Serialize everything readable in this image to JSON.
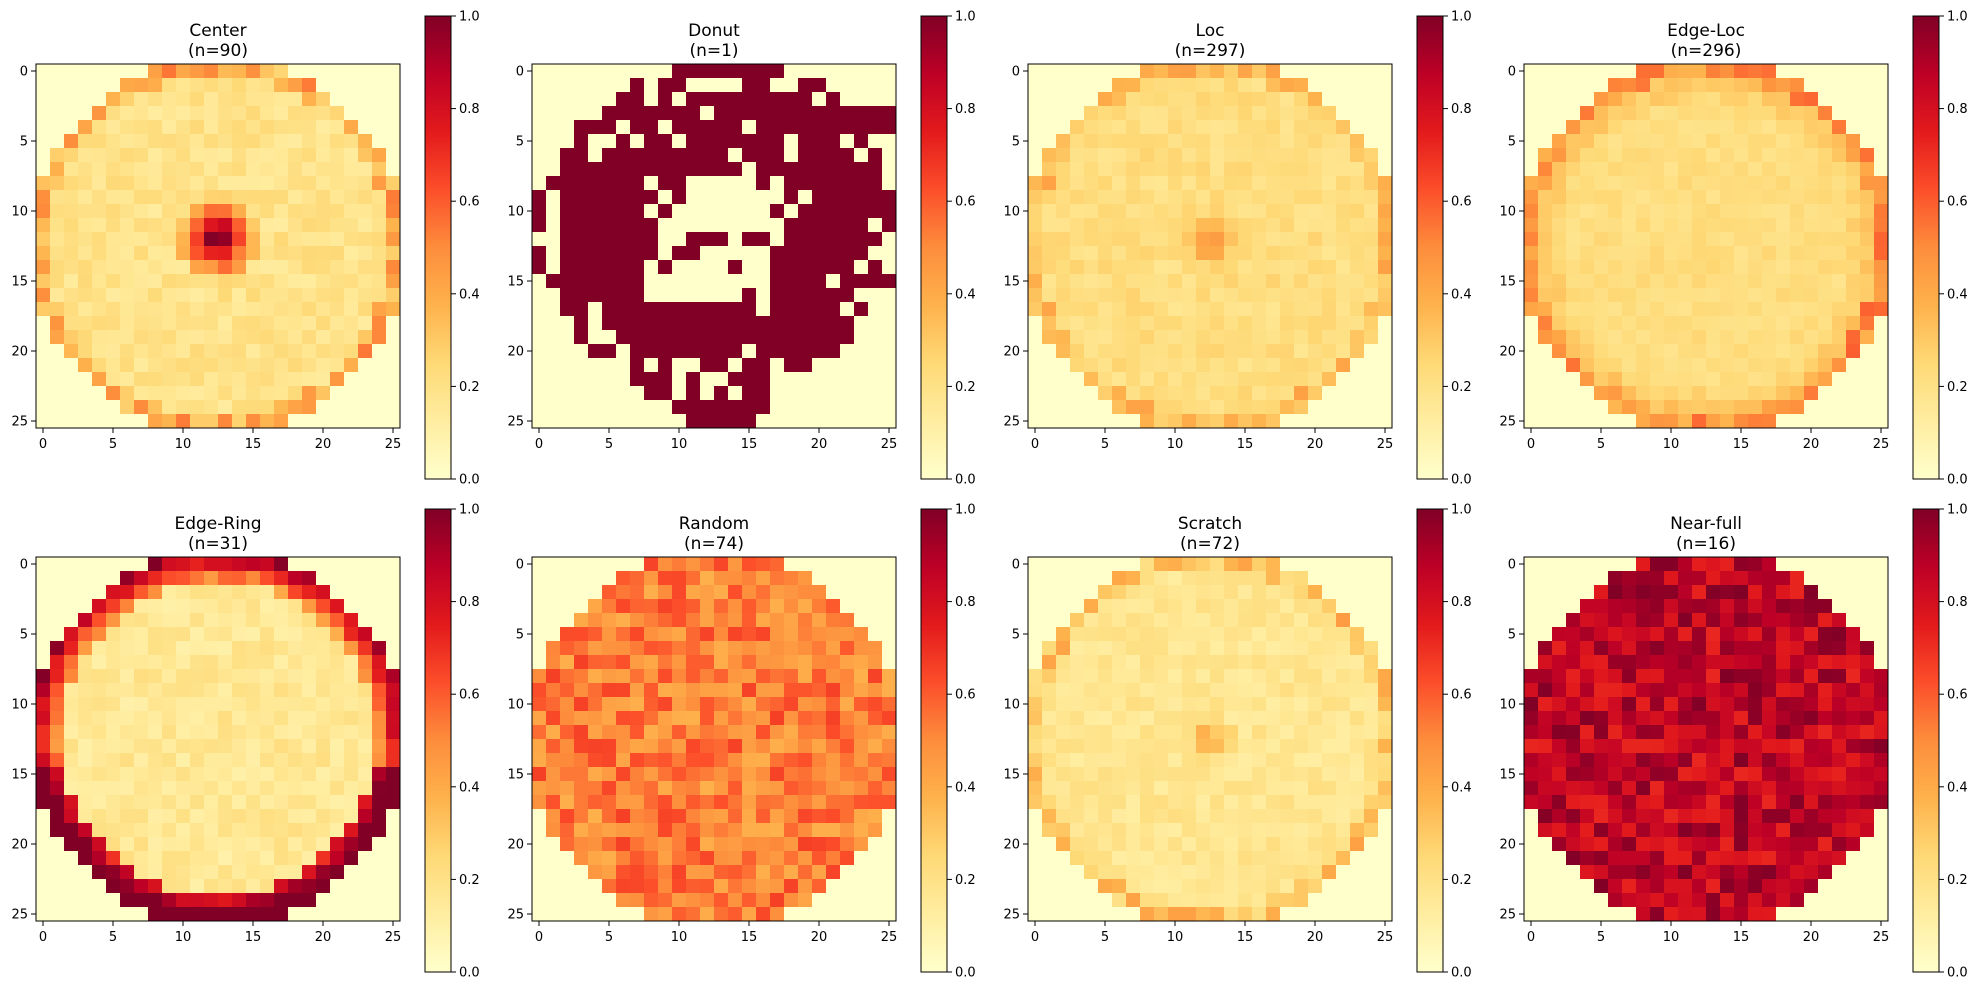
{
  "figure": {
    "rows": 2,
    "cols": 4,
    "colormap": "YlOrRd",
    "pixel_grid": [
      26,
      26
    ],
    "color_range": [
      0,
      1
    ]
  },
  "chart_data": [
    {
      "type": "heatmap",
      "title": "Center",
      "subtitle": "(n=90)",
      "pattern": "center",
      "xticks": [
        0,
        5,
        10,
        15,
        20,
        25
      ],
      "yticks": [
        0,
        5,
        10,
        15,
        20,
        25
      ],
      "colorbar_ticks": [
        0.0,
        0.2,
        0.4,
        0.6,
        0.8,
        1.0
      ],
      "vmin": 0,
      "vmax": 1,
      "description": "wafer disc low intensity ~0.15, central hot spot ~1.0 at (12,12)"
    },
    {
      "type": "heatmap",
      "title": "Donut",
      "subtitle": "(n=1)",
      "pattern": "donut",
      "xticks": [
        0,
        5,
        10,
        15,
        20,
        25
      ],
      "yticks": [
        0,
        5,
        10,
        15,
        20,
        25
      ],
      "colorbar_ticks": [
        0.0,
        0.2,
        0.4,
        0.6,
        0.8,
        1.0
      ],
      "vmin": 0,
      "vmax": 1,
      "description": "binary map: ring of 1.0 around empty center, scattered gaps at rim"
    },
    {
      "type": "heatmap",
      "title": "Loc",
      "subtitle": "(n=297)",
      "pattern": "loc",
      "xticks": [
        0,
        5,
        10,
        15,
        20,
        25
      ],
      "yticks": [
        0,
        5,
        10,
        15,
        20,
        25
      ],
      "colorbar_ticks": [
        0.0,
        0.2,
        0.4,
        0.6,
        0.8,
        1.0
      ],
      "vmin": 0,
      "vmax": 1,
      "description": "uniform ~0.2 disc, small 0.4 patch near center"
    },
    {
      "type": "heatmap",
      "title": "Edge-Loc",
      "subtitle": "(n=296)",
      "pattern": "edgeloc",
      "xticks": [
        0,
        5,
        10,
        15,
        20,
        25
      ],
      "yticks": [
        0,
        5,
        10,
        15,
        20,
        25
      ],
      "colorbar_ticks": [
        0.0,
        0.2,
        0.4,
        0.6,
        0.8,
        1.0
      ],
      "vmin": 0,
      "vmax": 1,
      "description": "~0.2 disc with slightly higher ~0.35 rim"
    },
    {
      "type": "heatmap",
      "title": "Edge-Ring",
      "subtitle": "(n=31)",
      "pattern": "edgering",
      "xticks": [
        0,
        5,
        10,
        15,
        20,
        25
      ],
      "yticks": [
        0,
        5,
        10,
        15,
        20,
        25
      ],
      "colorbar_ticks": [
        0.0,
        0.2,
        0.4,
        0.6,
        0.8,
        1.0
      ],
      "vmin": 0,
      "vmax": 1,
      "description": "~0.15 interior, rim rising to ~0.9 at bottom edge"
    },
    {
      "type": "heatmap",
      "title": "Random",
      "subtitle": "(n=74)",
      "pattern": "random",
      "xticks": [
        0,
        5,
        10,
        15,
        20,
        25
      ],
      "yticks": [
        0,
        5,
        10,
        15,
        20,
        25
      ],
      "colorbar_ticks": [
        0.0,
        0.2,
        0.4,
        0.6,
        0.8,
        1.0
      ],
      "vmin": 0,
      "vmax": 1,
      "description": "uniform ~0.5 disc with noise"
    },
    {
      "type": "heatmap",
      "title": "Scratch",
      "subtitle": "(n=72)",
      "pattern": "scratch",
      "xticks": [
        0,
        5,
        10,
        15,
        20,
        25
      ],
      "yticks": [
        0,
        5,
        10,
        15,
        20,
        25
      ],
      "colorbar_ticks": [
        0.0,
        0.2,
        0.4,
        0.6,
        0.8,
        1.0
      ],
      "vmin": 0,
      "vmax": 1,
      "description": "~0.15 disc, faint 0.35 spot near center"
    },
    {
      "type": "heatmap",
      "title": "Near-full",
      "subtitle": "(n=16)",
      "pattern": "nearfull",
      "xticks": [
        0,
        5,
        10,
        15,
        20,
        25
      ],
      "yticks": [
        0,
        5,
        10,
        15,
        20,
        25
      ],
      "colorbar_ticks": [
        0.0,
        0.2,
        0.4,
        0.6,
        0.8,
        1.0
      ],
      "vmin": 0,
      "vmax": 1,
      "description": "disc ~0.85 with noise 0.7-1.0"
    }
  ]
}
